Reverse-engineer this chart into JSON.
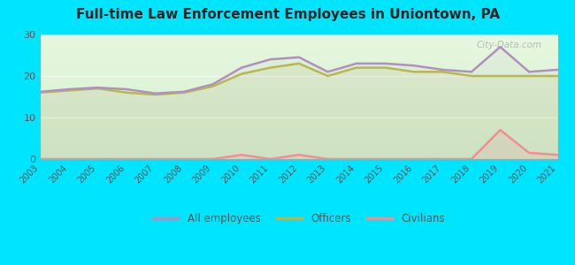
{
  "title": "Full-time Law Enforcement Employees in Uniontown, PA",
  "years": [
    2003,
    2004,
    2005,
    2006,
    2007,
    2008,
    2009,
    2010,
    2011,
    2012,
    2013,
    2014,
    2015,
    2016,
    2017,
    2018,
    2019,
    2020,
    2021
  ],
  "officers": [
    16,
    16.5,
    17,
    16,
    15.5,
    16,
    17.5,
    20.5,
    22,
    23,
    20,
    22,
    22,
    21,
    21,
    20,
    20,
    20,
    20
  ],
  "all_employees": [
    16.2,
    16.8,
    17.2,
    16.8,
    15.8,
    16.2,
    18,
    22,
    24,
    24.5,
    21,
    23,
    23,
    22.5,
    21.5,
    21,
    27,
    21,
    21.5
  ],
  "civilians": [
    0,
    0,
    0,
    0,
    0,
    0,
    0,
    1,
    0,
    1,
    0,
    0,
    0,
    0,
    0,
    0,
    7,
    1.5,
    1
  ],
  "officers_color": "#b8b850",
  "all_employees_color": "#b090c0",
  "civilians_color": "#f09090",
  "bg_outer": "#00e5ff",
  "bg_plot_top": "#f0fce8",
  "bg_plot_bottom": "#d8f5d0",
  "ylim": [
    0,
    30
  ],
  "yticks": [
    0,
    10,
    20,
    30
  ],
  "watermark": "City-Data.com",
  "legend_labels": [
    "All employees",
    "Officers",
    "Civilians"
  ]
}
